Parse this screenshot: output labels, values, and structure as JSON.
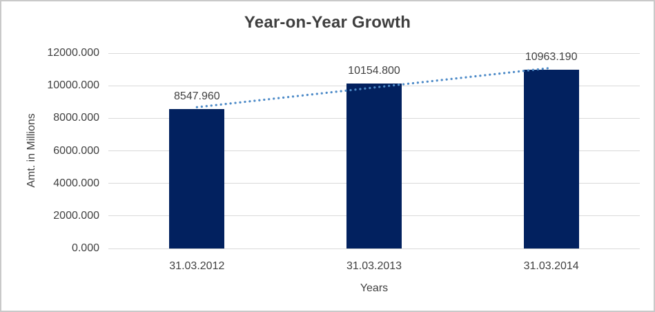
{
  "chart_data": {
    "type": "bar",
    "title": "Year-on-Year Growth",
    "xlabel": "Years",
    "ylabel": "Amt. in Millions",
    "categories": [
      "31.03.2012",
      "31.03.2013",
      "31.03.2014"
    ],
    "values": [
      8547.96,
      10154.8,
      10963.19
    ],
    "data_labels": [
      "8547.960",
      "10154.800",
      "10963.190"
    ],
    "ylim": [
      0,
      12000
    ],
    "ytick_step": 2000,
    "ytick_labels": [
      "0.000",
      "2000.000",
      "4000.000",
      "6000.000",
      "8000.000",
      "10000.000",
      "12000.000"
    ],
    "grid": true,
    "legend": "none",
    "bar_color": "#02215f",
    "gridline_color": "#d9d9d9",
    "text_color": "#404040",
    "title_color": "#3f3f3f",
    "trendline": {
      "style": "dotted",
      "color": "#4e8bc8",
      "fit_values": [
        8681.0,
        11096.3
      ]
    }
  }
}
